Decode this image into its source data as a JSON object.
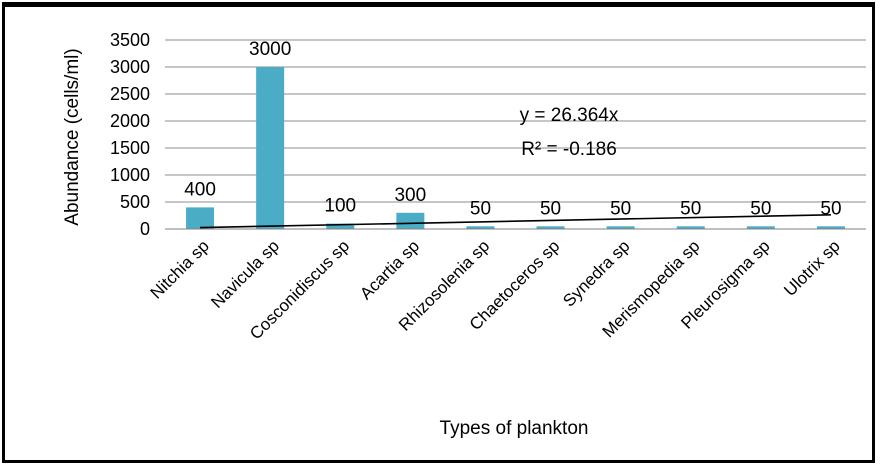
{
  "chart_data": {
    "type": "bar",
    "title": "",
    "xlabel": "Types of plankton",
    "ylabel": "Abundance (cells/ml)",
    "ylim": [
      0,
      3500
    ],
    "yticks": [
      0,
      500,
      1000,
      1500,
      2000,
      2500,
      3000,
      3500
    ],
    "grid": true,
    "categories": [
      "Nitchia sp",
      "Navicula sp",
      "Cosconidiscus sp",
      "Acartia sp",
      "Rhizosolenia sp",
      "Chaetoceros sp",
      "Synedra sp",
      "Merismopedia sp",
      "Pleurosigma sp",
      "Ulotrix sp"
    ],
    "values": [
      400,
      3000,
      100,
      300,
      50,
      50,
      50,
      50,
      50,
      50
    ],
    "data_labels": [
      "400",
      "3000",
      "100",
      "300",
      "50",
      "50",
      "50",
      "50",
      "50",
      "50"
    ],
    "bar_color": "#4bacc6",
    "trendline": {
      "type": "linear",
      "equation": "y = 26.364x",
      "r_squared": "R² = -0.186",
      "slope": 26.364
    }
  }
}
